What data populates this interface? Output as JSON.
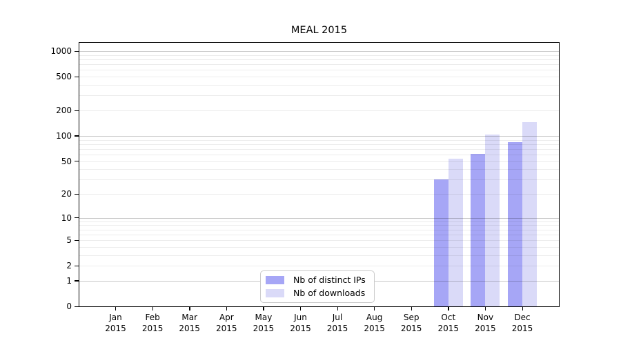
{
  "chart_data": {
    "type": "bar",
    "title": "MEAL 2015",
    "categories": [
      "Jan",
      "Feb",
      "Mar",
      "Apr",
      "May",
      "Jun",
      "Jul",
      "Aug",
      "Sep",
      "Oct",
      "Nov",
      "Dec"
    ],
    "year": "2015",
    "series": [
      {
        "name": "Nb of distinct IPs",
        "color": "#a6a6f6",
        "values": [
          0,
          0,
          0,
          0,
          0,
          0,
          0,
          0,
          0,
          30,
          61,
          85
        ]
      },
      {
        "name": "Nb of downloads",
        "color": "#dadaf8",
        "values": [
          0,
          0,
          0,
          0,
          0,
          0,
          0,
          0,
          0,
          53,
          104,
          145
        ]
      }
    ],
    "yticks": [
      0,
      1,
      2,
      5,
      10,
      20,
      50,
      100,
      200,
      500,
      1000
    ],
    "scale": "log10(1+x)",
    "ylim": [
      0,
      1160
    ],
    "grid": "horizontal; minor lines at 2-9 per decade, major at 1,10,100,1000",
    "legend_position": "inside bottom-center",
    "axis_color": "#000000",
    "gridline_major_color": "#c7c7c7",
    "gridline_minor_color": "#ebebeb"
  }
}
